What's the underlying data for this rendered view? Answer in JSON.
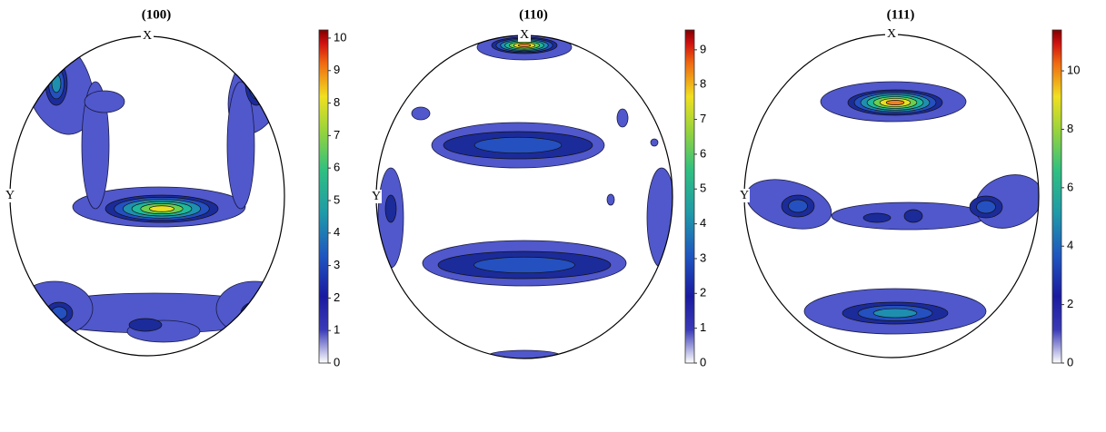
{
  "chart_data": [
    {
      "type": "pole-figure",
      "title": "(100)",
      "x_label": "X",
      "y_label": "Y",
      "ylim": [
        0,
        10.25
      ],
      "yticks": [
        0,
        1,
        2,
        3,
        4,
        5,
        6,
        7,
        8,
        9,
        10
      ]
    },
    {
      "type": "pole-figure",
      "title": "(110)",
      "x_label": "X",
      "y_label": "Y",
      "ylim": [
        0,
        9.57
      ],
      "yticks": [
        0,
        1,
        2,
        3,
        4,
        5,
        6,
        7,
        8,
        9
      ]
    },
    {
      "type": "pole-figure",
      "title": "(111)",
      "x_label": "X",
      "y_label": "Y",
      "ylim": [
        0,
        11.4
      ],
      "yticks": [
        0,
        2,
        4,
        6,
        8,
        10
      ]
    }
  ]
}
